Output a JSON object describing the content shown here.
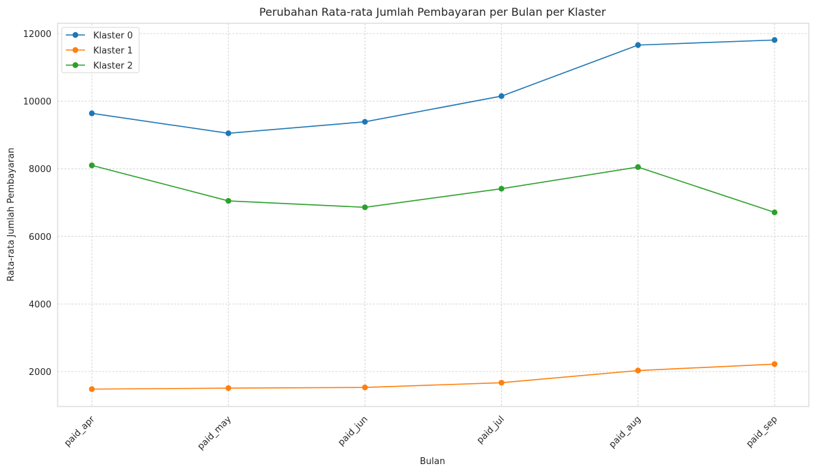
{
  "chart_data": {
    "type": "line",
    "title": "Perubahan Rata-rata Jumlah Pembayaran per Bulan per Klaster",
    "xlabel": "Bulan",
    "ylabel": "Rata-rata Jumlah Pembayaran",
    "categories": [
      "paid_apr",
      "paid_may",
      "paid_jun",
      "paid_jul",
      "paid_aug",
      "paid_sep"
    ],
    "ylim": [
      1000,
      12300
    ],
    "yticks": [
      2000,
      4000,
      6000,
      8000,
      10000,
      12000
    ],
    "grid": true,
    "legend_position": "top-left",
    "series": [
      {
        "name": "Klaster 0",
        "color": "#1f77b4",
        "values": [
          9640,
          9050,
          9390,
          10150,
          11660,
          11810
        ]
      },
      {
        "name": "Klaster 1",
        "color": "#ff7f0e",
        "values": [
          1480,
          1510,
          1530,
          1670,
          2030,
          2220
        ]
      },
      {
        "name": "Klaster 2",
        "color": "#2ca02c",
        "values": [
          8100,
          7050,
          6860,
          7410,
          8050,
          6710
        ]
      }
    ]
  }
}
